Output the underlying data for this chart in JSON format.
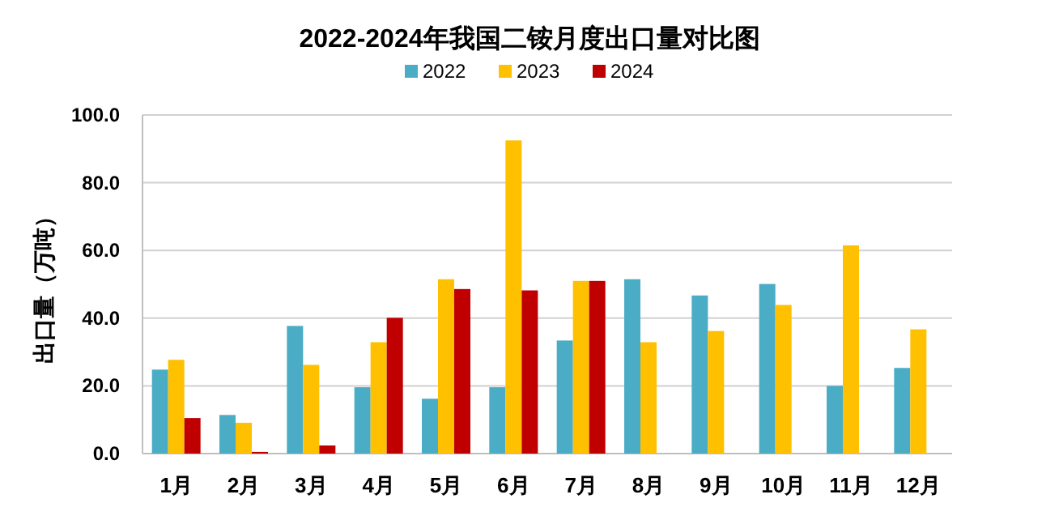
{
  "chart_data": {
    "type": "bar",
    "title": "2022-2024年我国二铵月度出口量对比图",
    "ylabel": "出口量（万吨）",
    "categories": [
      "1月",
      "2月",
      "3月",
      "4月",
      "5月",
      "6月",
      "7月",
      "8月",
      "9月",
      "10月",
      "11月",
      "12月"
    ],
    "series": [
      {
        "name": "2022",
        "color": "#4bacc6",
        "values": [
          24.8,
          11.4,
          37.7,
          19.6,
          16.2,
          19.6,
          33.4,
          51.5,
          46.7,
          50.1,
          20.0,
          25.3
        ]
      },
      {
        "name": "2023",
        "color": "#ffc000",
        "values": [
          27.7,
          9.1,
          26.2,
          32.9,
          51.5,
          92.5,
          51.0,
          32.9,
          36.2,
          43.9,
          61.5,
          36.7
        ]
      },
      {
        "name": "2024",
        "color": "#c00000",
        "values": [
          10.5,
          0.5,
          2.4,
          40.1,
          48.6,
          48.2,
          51.0,
          null,
          null,
          null,
          null,
          null
        ]
      }
    ],
    "ylim": [
      0,
      100
    ],
    "yticks": [
      {
        "value": 0,
        "label": "0.0"
      },
      {
        "value": 20,
        "label": "20.0"
      },
      {
        "value": 40,
        "label": "40.0"
      },
      {
        "value": 60,
        "label": "60.0"
      },
      {
        "value": 80,
        "label": "80.0"
      },
      {
        "value": 100,
        "label": "100.0"
      }
    ],
    "grid": "y",
    "legend": "top"
  }
}
